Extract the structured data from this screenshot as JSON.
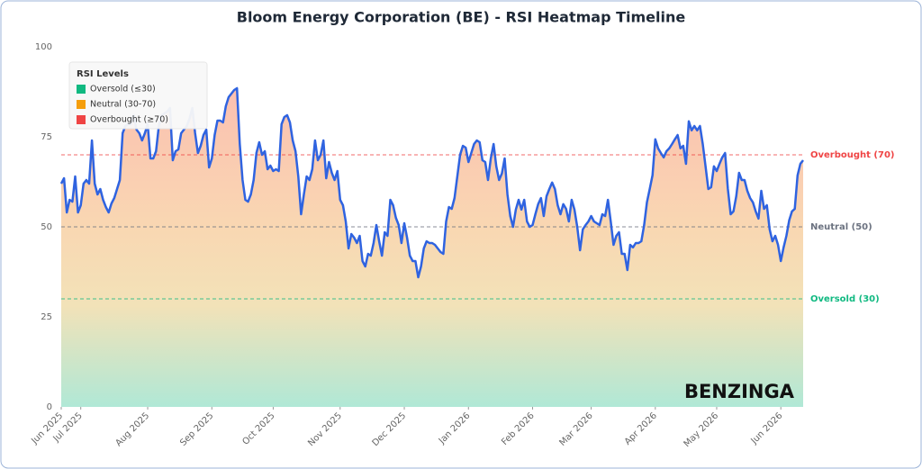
{
  "chart_data": {
    "type": "line",
    "title": "Bloom Energy Corporation (BE) - RSI Heatmap Timeline",
    "series": [
      {
        "name": "RSI",
        "color": "#2f63e0",
        "values": [
          62,
          63.5,
          54,
          57.5,
          57,
          64,
          54,
          56,
          62,
          63,
          62,
          74,
          62,
          59,
          60.5,
          57.5,
          55.5,
          54,
          56.5,
          58,
          60.5,
          63,
          76,
          78,
          78.5,
          78.5,
          81,
          77,
          76,
          74,
          76,
          78.5,
          69,
          69,
          71,
          78,
          81,
          81.5,
          82,
          83,
          68.5,
          71,
          71.5,
          76,
          77,
          78,
          80,
          83,
          76,
          70.5,
          72.5,
          75.5,
          77,
          66.5,
          69,
          75.5,
          79.5,
          79.5,
          79,
          83.5,
          86,
          87,
          88,
          88.5,
          73,
          63,
          57.5,
          57,
          59,
          63,
          70.5,
          73.5,
          70,
          71,
          66,
          67,
          65.5,
          66,
          65.5,
          78.5,
          80.5,
          81,
          79,
          74,
          71,
          64,
          53.5,
          59,
          64,
          63,
          66,
          74,
          68.5,
          70,
          74,
          63.5,
          68,
          65,
          63,
          65.5,
          57.5,
          56,
          51.5,
          44,
          48,
          47,
          45.5,
          47.5,
          40.5,
          39,
          42.5,
          42,
          45.5,
          50.5,
          46,
          42,
          48.5,
          47.5,
          57.5,
          56,
          52.5,
          50.5,
          45.5,
          51,
          47,
          42,
          40.5,
          40.5,
          36,
          39,
          44,
          46,
          45.5,
          45.5,
          45,
          44,
          43,
          42.5,
          51.5,
          55.5,
          55,
          58,
          64,
          70,
          72.5,
          72,
          68,
          70.5,
          73,
          74,
          73.5,
          68.5,
          68,
          63,
          69,
          73,
          66.8,
          63,
          64.8,
          69,
          59,
          53,
          50,
          54.8,
          57.5,
          54.8,
          57.5,
          51.5,
          50,
          50.5,
          53.5,
          56.3,
          58,
          53,
          58.5,
          60.5,
          62.3,
          60.5,
          56,
          53.5,
          56.3,
          55,
          51.5,
          57.5,
          54.8,
          50,
          43.5,
          49.3,
          50.5,
          51.5,
          53,
          51.5,
          51,
          50.5,
          53.5,
          53,
          57.5,
          51.5,
          45,
          47.5,
          48.5,
          42.5,
          42.5,
          38,
          45,
          44.3,
          45.5,
          45.5,
          46,
          50.5,
          56.8,
          60.5,
          64.3,
          74.3,
          71.8,
          70.5,
          69.3,
          71,
          71.8,
          73,
          74.3,
          75.5,
          71.8,
          72.5,
          67.5,
          79.3,
          76.8,
          78,
          76.8,
          78,
          73,
          66.8,
          60.5,
          61,
          66.8,
          65.5,
          67.5,
          69.3,
          70.5,
          60.5,
          53.5,
          54.3,
          58.5,
          65,
          63,
          63,
          60,
          58,
          56.8,
          54.3,
          52.3,
          60,
          55,
          56,
          49.3,
          46,
          47.5,
          45,
          40.5,
          44.3,
          47.5,
          51.8,
          54.3,
          55,
          64.3,
          67.5,
          68.5
        ]
      }
    ],
    "xlim": [
      0,
      266
    ],
    "xticks": [
      {
        "value": 0,
        "label": "Jun 2025"
      },
      {
        "value": 7,
        "label": "Jul 2025"
      },
      {
        "value": 31,
        "label": "Aug 2025"
      },
      {
        "value": 54,
        "label": "Sep 2025"
      },
      {
        "value": 76,
        "label": "Oct 2025"
      },
      {
        "value": 100,
        "label": "Nov 2025"
      },
      {
        "value": 123,
        "label": "Dec 2025"
      },
      {
        "value": 146,
        "label": "Jan 2026"
      },
      {
        "value": 169,
        "label": "Feb 2026"
      },
      {
        "value": 190,
        "label": "Mar 2026"
      },
      {
        "value": 213,
        "label": "Apr 2026"
      },
      {
        "value": 235,
        "label": "May 2026"
      },
      {
        "value": 258,
        "label": "Jun 2026"
      }
    ],
    "ylim": [
      0,
      100
    ],
    "yticks": [
      0,
      25,
      50,
      75,
      100
    ],
    "reference_lines": [
      {
        "value": 70,
        "label": "Overbought (70)",
        "color": "#ef4444"
      },
      {
        "value": 50,
        "label": "Neutral (50)",
        "color": "#6b7280"
      },
      {
        "value": 30,
        "label": "Oversold (30)",
        "color": "#10b981"
      }
    ],
    "legend": {
      "title": "RSI Levels",
      "position": "upper left",
      "items": [
        {
          "label": "Oversold (≤30)",
          "color": "#10b981"
        },
        {
          "label": "Neutral (30-70)",
          "color": "#f59e0b"
        },
        {
          "label": "Overbought (≥70)",
          "color": "#ef4444"
        }
      ]
    },
    "watermark": "BENZINGA"
  }
}
